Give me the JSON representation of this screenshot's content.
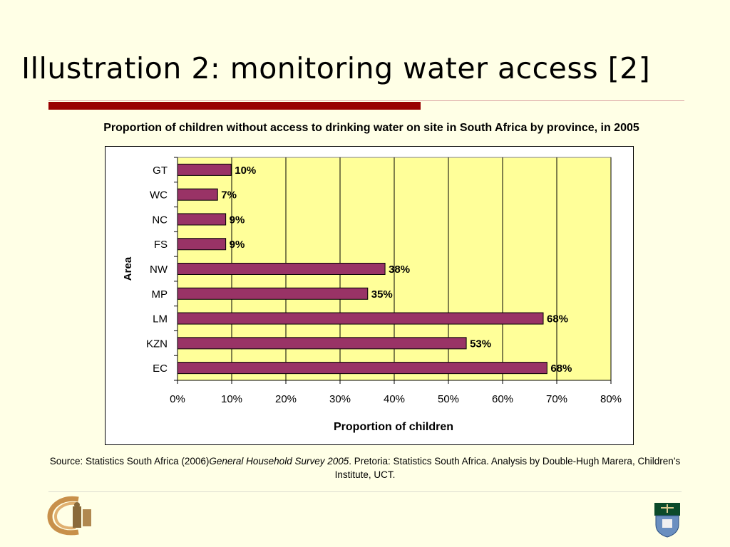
{
  "slide": {
    "title": "Illustration 2: monitoring water access [2]"
  },
  "chart_data": {
    "type": "bar",
    "orientation": "horizontal",
    "title": "Proportion of children without access to drinking water on site in South Africa by province, in 2005",
    "xlabel": "Proportion of children",
    "ylabel": "Area",
    "categories": [
      "GT",
      "WC",
      "NC",
      "FS",
      "NW",
      "MP",
      "LM",
      "KZN",
      "EC"
    ],
    "values": [
      10,
      7,
      9,
      9,
      38,
      35,
      68,
      53,
      68
    ],
    "bar_lengths": [
      9.9,
      7.4,
      8.9,
      8.9,
      38.3,
      35.1,
      67.5,
      53.3,
      68.2
    ],
    "value_labels": [
      "10%",
      "7%",
      "9%",
      "9%",
      "38%",
      "35%",
      "68%",
      "53%",
      "68%"
    ],
    "xlim": [
      0,
      80
    ],
    "xticks": [
      "0%",
      "10%",
      "20%",
      "30%",
      "40%",
      "50%",
      "60%",
      "70%",
      "80%"
    ],
    "grid": true,
    "legend": "none",
    "colors": {
      "bar": "#993366",
      "plot_background": "#ffff99",
      "gridline": "#000000"
    }
  },
  "source": {
    "prefix": "Source: Statistics South Africa (2006)",
    "italic": "General Household Survey 2005",
    "suffix": ". Pretoria: Statistics South Africa. Analysis by Double-Hugh Marera, Children’s Institute, UCT."
  },
  "colors": {
    "background": "#ffffe6",
    "accent_bar": "#990000"
  }
}
